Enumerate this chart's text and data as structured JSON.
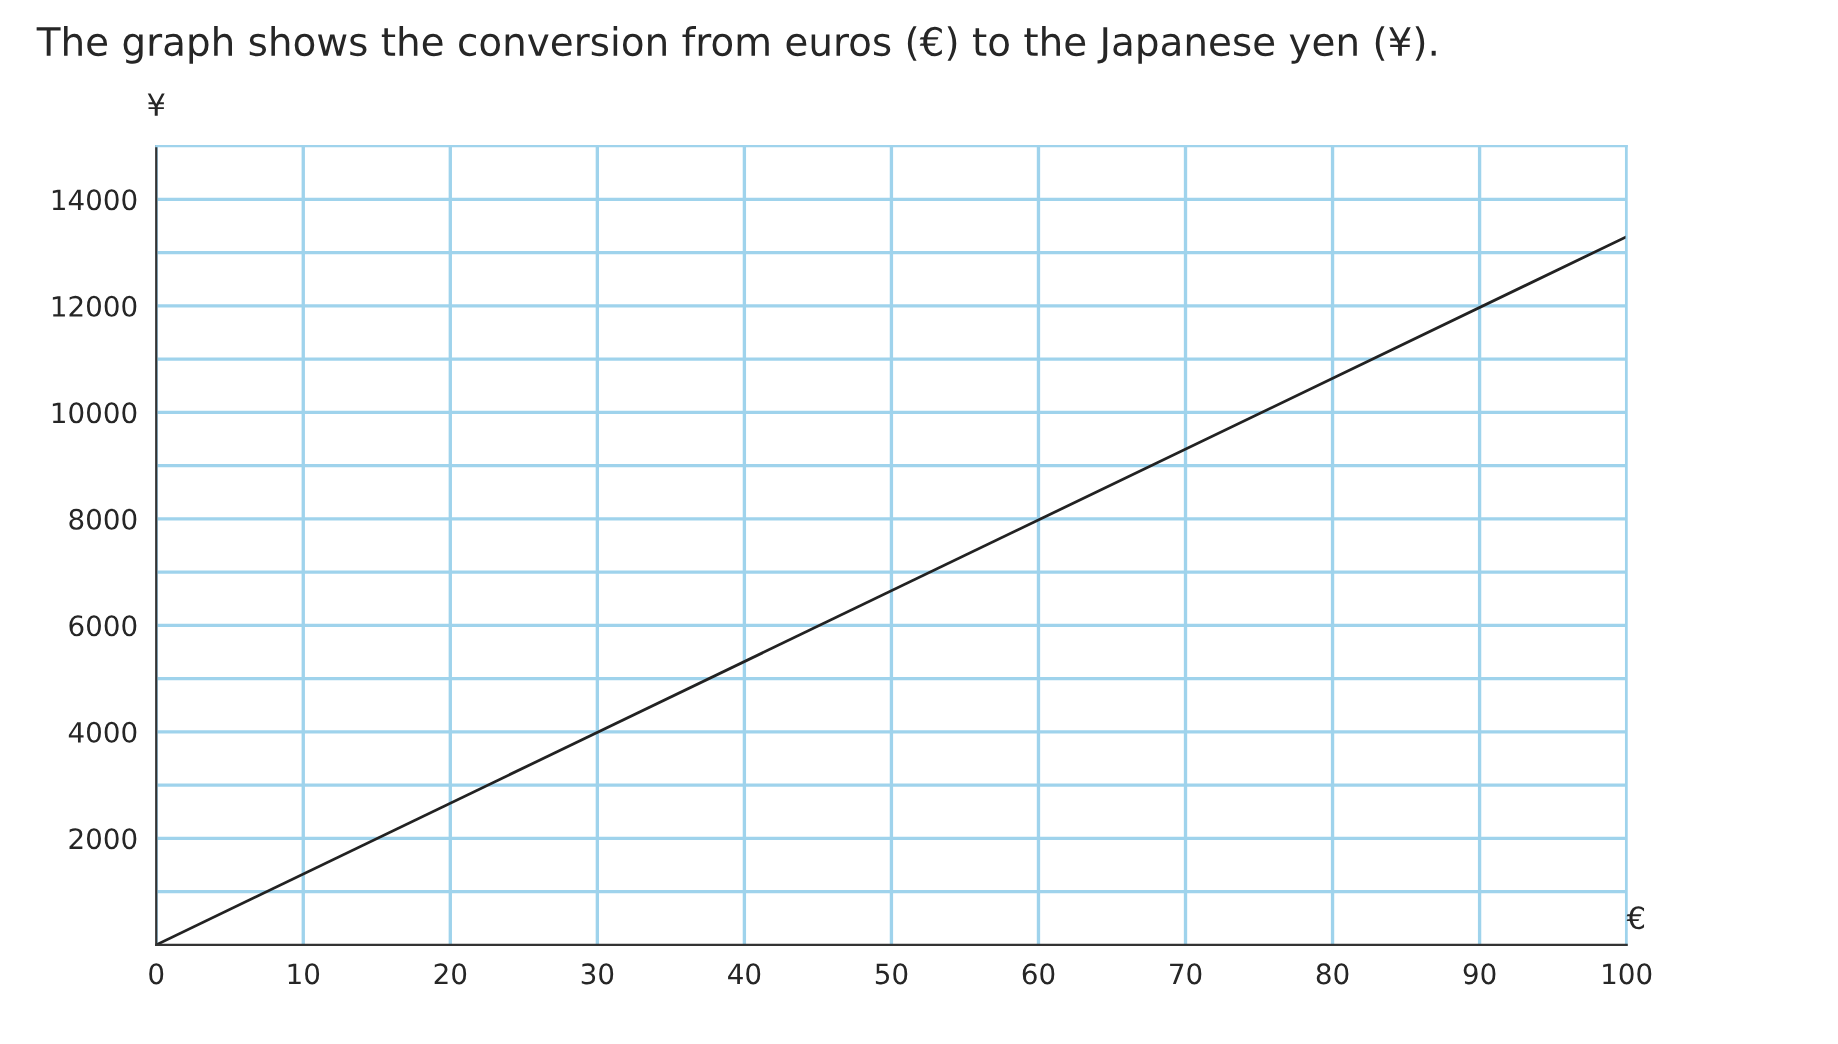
{
  "chart_data": {
    "type": "line",
    "title": "The graph shows the conversion from euros (€) to the Japanese yen (¥).",
    "xlabel": "€",
    "ylabel": "¥",
    "x": [
      0,
      100
    ],
    "series": [
      {
        "color": "#222222",
        "values": [
          0,
          13300
        ]
      }
    ],
    "xlim": [
      0,
      100
    ],
    "xticks": [
      0,
      10,
      20,
      30,
      40,
      50,
      60,
      70,
      80,
      90,
      100
    ],
    "ylim": [
      0,
      15000
    ],
    "yticks": [
      {
        "value": 1000,
        "label": null
      },
      2000,
      {
        "value": 3000,
        "label": null
      },
      4000,
      {
        "value": 5000,
        "label": null
      },
      6000,
      {
        "value": 7000,
        "label": null
      },
      8000,
      {
        "value": 9000,
        "label": null
      },
      10000,
      {
        "value": 11000,
        "label": null
      },
      12000,
      {
        "value": 13000,
        "label": null
      },
      14000
    ],
    "grid": true,
    "marker": "none",
    "line_style": "solid",
    "legend": false
  }
}
